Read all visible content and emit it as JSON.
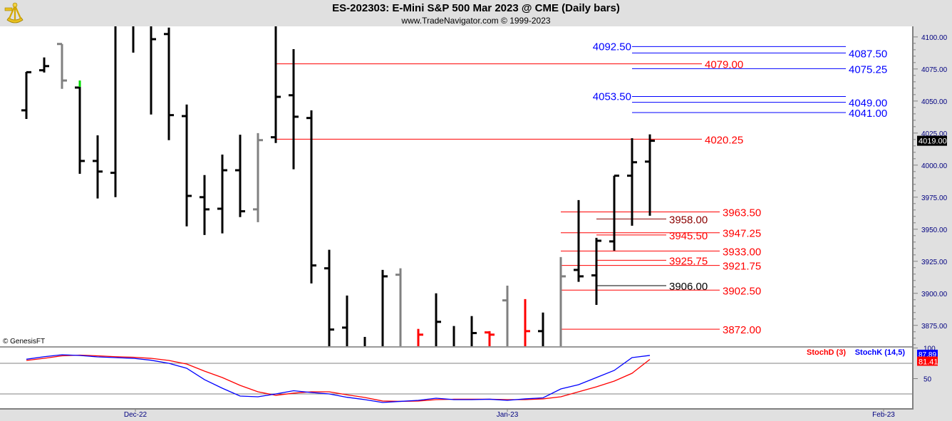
{
  "header": {
    "title": "ES-202303:  E-Mini S&P 500 Mar 2023 @ CME  (Daily bars)",
    "subtitle": "www.TradeNavigator.com © 1999-2023",
    "logo": "sextant-logo-icon"
  },
  "copyright": "© GenesisFT",
  "colors": {
    "up": "#000000",
    "grey": "#808080",
    "red": "#ff0000",
    "blue": "#0000ff",
    "darkred": "#8b0000",
    "marker": "#00e000"
  },
  "chart_data": [
    {
      "type": "ohlc",
      "ylim": [
        3858.75,
        4108.25
      ],
      "y_ticks": [
        "4100.00",
        "4075.00",
        "4050.00",
        "4025.00",
        "4000.00",
        "3975.00",
        "3950.00",
        "3925.00",
        "3900.00",
        "3875.00"
      ],
      "last_price_label": "4019.00",
      "x_labels": [
        "Dec-22",
        "Jan-23",
        "Feb-23"
      ],
      "bars": [
        {
          "o": 4042.75,
          "h": 4072.75,
          "l": 4036.0,
          "c": 4072.5,
          "color": "up"
        },
        {
          "o": 4074.0,
          "h": 4084.0,
          "l": 4072.25,
          "c": 4077.25,
          "color": "up"
        },
        {
          "o": 4094.5,
          "h": 4094.5,
          "l": 4059.5,
          "c": 4066.0,
          "color": "grey"
        },
        {
          "o": 4060.5,
          "h": 4066.0,
          "l": 3993.25,
          "c": 4003.25,
          "color": "up",
          "marker": true
        },
        {
          "o": 4003.25,
          "h": 4023.25,
          "l": 3974.0,
          "c": 3995.0,
          "color": "up"
        },
        {
          "o": 3994.0,
          "h": 4115.0,
          "l": 3975.0,
          "c": 4110.0,
          "color": "up"
        },
        {
          "o": 4115.0,
          "h": 4125.0,
          "l": 4087.75,
          "c": 4112.0,
          "color": "up"
        },
        {
          "o": 4118.0,
          "h": 4122.0,
          "l": 4039.5,
          "c": 4098.25,
          "color": "up"
        },
        {
          "o": 4102.25,
          "h": 4107.25,
          "l": 4019.5,
          "c": 4039.0,
          "color": "up"
        },
        {
          "o": 4038.25,
          "h": 4047.25,
          "l": 3952.25,
          "c": 3976.0,
          "color": "up"
        },
        {
          "o": 3975.0,
          "h": 3992.25,
          "l": 3945.5,
          "c": 3965.5,
          "color": "up"
        },
        {
          "o": 3966.0,
          "h": 4008.25,
          "l": 3946.75,
          "c": 3996.0,
          "color": "up"
        },
        {
          "o": 3996.0,
          "h": 4023.75,
          "l": 3959.5,
          "c": 3964.0,
          "color": "up"
        },
        {
          "o": 3965.5,
          "h": 4025.0,
          "l": 3955.5,
          "c": 4019.5,
          "color": "grey"
        },
        {
          "o": 4021.75,
          "h": 4112.0,
          "l": 4017.25,
          "c": 4053.25,
          "color": "up"
        },
        {
          "o": 4054.5,
          "h": 4090.5,
          "l": 3996.75,
          "c": 4037.75,
          "color": "up"
        },
        {
          "o": 4036.75,
          "h": 4042.75,
          "l": 3907.75,
          "c": 3921.75,
          "color": "up"
        },
        {
          "o": 3919.5,
          "h": 3934.0,
          "l": 3840.0,
          "c": 3871.75,
          "color": "up"
        },
        {
          "o": 3873.25,
          "h": 3898.25,
          "l": 3835.0,
          "c": 3850.0,
          "color": "up"
        },
        {
          "o": 3855.0,
          "h": 3866.0,
          "l": 3830.0,
          "c": 3845.0,
          "color": "up"
        },
        {
          "o": 3850.0,
          "h": 3918.25,
          "l": 3835.0,
          "c": 3913.25,
          "color": "up"
        },
        {
          "o": 3914.5,
          "h": 3919.5,
          "l": 3838.0,
          "c": 3845.0,
          "color": "grey"
        },
        {
          "o": 3850.0,
          "h": 3872.25,
          "l": 3840.0,
          "c": 3867.75,
          "color": "red"
        },
        {
          "o": 3850.0,
          "h": 3900.0,
          "l": 3840.0,
          "c": 3877.75,
          "color": "up"
        },
        {
          "o": 3845.0,
          "h": 3874.5,
          "l": 3835.0,
          "c": 3850.0,
          "color": "up"
        },
        {
          "o": 3850.0,
          "h": 3882.25,
          "l": 3840.0,
          "c": 3869.0,
          "color": "up"
        },
        {
          "o": 3869.5,
          "h": 3870.5,
          "l": 3845.0,
          "c": 3867.75,
          "color": "red"
        },
        {
          "o": 3894.5,
          "h": 3906.0,
          "l": 3845.0,
          "c": 3850.0,
          "color": "grey"
        },
        {
          "o": 3855.0,
          "h": 3895.5,
          "l": 3845.0,
          "c": 3870.5,
          "color": "red"
        },
        {
          "o": 3870.5,
          "h": 3885.0,
          "l": 3845.0,
          "c": 3850.0,
          "color": "up"
        },
        {
          "o": 3850.0,
          "h": 3928.25,
          "l": 3845.0,
          "c": 3913.25,
          "color": "grey"
        },
        {
          "o": 3918.25,
          "h": 3972.75,
          "l": 3909.0,
          "c": 3913.25,
          "color": "up"
        },
        {
          "o": 3914.0,
          "h": 3943.25,
          "l": 3891.0,
          "c": 3941.0,
          "color": "up"
        },
        {
          "o": 3940.5,
          "h": 3991.75,
          "l": 3933.25,
          "c": 3991.75,
          "color": "up"
        },
        {
          "o": 3991.75,
          "h": 4021.0,
          "l": 3952.75,
          "c": 4002.25,
          "color": "up"
        },
        {
          "o": 4002.75,
          "h": 4024.0,
          "l": 3960.5,
          "c": 4019.0,
          "color": "up"
        }
      ],
      "levels": [
        {
          "price": 4092.5,
          "label": "4092.50",
          "color": "blue"
        },
        {
          "price": 4087.5,
          "label": "4087.50",
          "color": "blue"
        },
        {
          "price": 4079.0,
          "label": "4079.00",
          "color": "red"
        },
        {
          "price": 4075.25,
          "label": "4075.25",
          "color": "blue"
        },
        {
          "price": 4053.5,
          "label": "4053.50",
          "color": "blue"
        },
        {
          "price": 4049.0,
          "label": "4049.00",
          "color": "blue"
        },
        {
          "price": 4041.0,
          "label": "4041.00",
          "color": "blue"
        },
        {
          "price": 4020.25,
          "label": "4020.25",
          "color": "red"
        },
        {
          "price": 3963.5,
          "label": "3963.50",
          "color": "red"
        },
        {
          "price": 3958.0,
          "label": "3958.00",
          "color": "darkred"
        },
        {
          "price": 3947.25,
          "label": "3947.25",
          "color": "red"
        },
        {
          "price": 3945.5,
          "label": "3945.50",
          "color": "red"
        },
        {
          "price": 3933.0,
          "label": "3933.00",
          "color": "red"
        },
        {
          "price": 3925.75,
          "label": "3925.75",
          "color": "red"
        },
        {
          "price": 3921.75,
          "label": "3921.75",
          "color": "red"
        },
        {
          "price": 3906.0,
          "label": "3906.00",
          "color": "up"
        },
        {
          "price": 3902.5,
          "label": "3902.50",
          "color": "red"
        },
        {
          "price": 3872.0,
          "label": "3872.00",
          "color": "red"
        }
      ]
    },
    {
      "type": "line",
      "ylim": [
        1.7,
        100.6
      ],
      "y_ticks": [
        "100",
        "50"
      ],
      "guides": [
        75,
        25
      ],
      "series": [
        {
          "name": "StochD (3)",
          "color": "red",
          "last_label": "81.41",
          "values": [
            79.7,
            83.1,
            87.2,
            88.4,
            87.2,
            85.8,
            84.9,
            83.1,
            79.7,
            73.8,
            62.2,
            51.7,
            38.9,
            28.5,
            22.7,
            26.2,
            28.5,
            28.5,
            23.5,
            19.2,
            13.4,
            12.8,
            13.4,
            15.7,
            16.3,
            16.3,
            16.3,
            15.7,
            15.7,
            16.9,
            20.3,
            28.5,
            36.6,
            45.9,
            58.7,
            81.41
          ]
        },
        {
          "name": "StochK (14,5)",
          "color": "blue",
          "last_label": "87.89",
          "values": [
            81.6,
            85.8,
            89.0,
            87.8,
            85.5,
            84.3,
            83.1,
            80.0,
            75.0,
            66.9,
            48.3,
            34.3,
            21.5,
            20.3,
            25.0,
            30.2,
            27.3,
            25.0,
            19.5,
            15.7,
            11.0,
            12.8,
            14.5,
            18.0,
            15.7,
            15.7,
            16.3,
            14.5,
            16.9,
            18.6,
            33.1,
            40.1,
            51.7,
            63.4,
            84.3,
            87.89
          ]
        }
      ]
    }
  ]
}
